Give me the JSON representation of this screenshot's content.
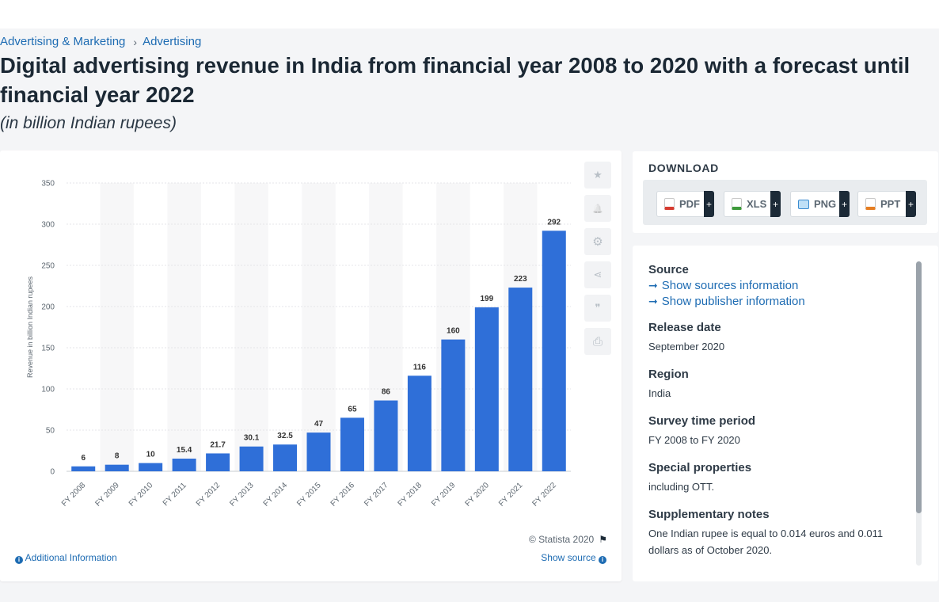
{
  "breadcrumb": {
    "items": [
      "Advertising & Marketing",
      "Advertising"
    ],
    "separator": "›"
  },
  "title": "Digital advertising revenue in India from financial year 2008 to 2020 with a forecast until financial year 2022",
  "subtitle": "(in billion Indian rupees)",
  "chart_data": {
    "type": "bar",
    "categories": [
      "FY 2008",
      "FY 2009",
      "FY 2010",
      "FY 2011",
      "FY 2012",
      "FY 2013",
      "FY 2014",
      "FY 2015",
      "FY 2016",
      "FY 2017",
      "FY 2018",
      "FY 2019",
      "FY 2020",
      "FY 2021",
      "FY 2022"
    ],
    "values": [
      6,
      8,
      10,
      15.4,
      21.7,
      30.1,
      32.5,
      47,
      65,
      86,
      116,
      160,
      199,
      223,
      292
    ],
    "data_labels": [
      "6",
      "8",
      "10",
      "15.4",
      "21.7",
      "30.1",
      "32.5",
      "47",
      "65",
      "86",
      "116",
      "160",
      "199",
      "223",
      "292"
    ],
    "ylabel": "Revenue in billion Indian rupees",
    "ylim": [
      0,
      350
    ],
    "yticks": [
      0,
      50,
      100,
      150,
      200,
      250,
      300,
      350
    ],
    "bar_color": "#2f6fd8",
    "grid": true,
    "legend": "none"
  },
  "chart_footer": {
    "copyright": "© Statista 2020",
    "additional_info": "Additional Information",
    "show_source": "Show source"
  },
  "tools": [
    {
      "icon": "star-icon",
      "glyph": "★"
    },
    {
      "icon": "bell-icon",
      "glyph": "🔔"
    },
    {
      "icon": "gear-icon",
      "glyph": "⚙"
    },
    {
      "icon": "share-icon",
      "glyph": "⋖"
    },
    {
      "icon": "quote-icon",
      "glyph": "❞"
    },
    {
      "icon": "print-icon",
      "glyph": "⎙"
    }
  ],
  "download": {
    "title": "DOWNLOAD",
    "buttons": [
      {
        "label": "PDF",
        "icon": "pdf-file-icon",
        "color": "#d63b30"
      },
      {
        "label": "XLS",
        "icon": "xls-file-icon",
        "color": "#3e9a3b"
      },
      {
        "label": "PNG",
        "icon": "png-file-icon",
        "color": "#3a8bd0"
      },
      {
        "label": "PPT",
        "icon": "ppt-file-icon",
        "color": "#e67e22"
      }
    ],
    "plus": "+"
  },
  "source_panel": {
    "source_heading": "Source",
    "show_sources": "Show sources information",
    "show_publisher": "Show publisher information",
    "release_date_heading": "Release date",
    "release_date": "September 2020",
    "region_heading": "Region",
    "region": "India",
    "survey_heading": "Survey time period",
    "survey": "FY 2008 to FY 2020",
    "special_heading": "Special properties",
    "special": "including OTT.",
    "notes_heading": "Supplementary notes",
    "notes": "One Indian rupee is equal to 0.014 euros and 0.011 dollars as of October 2020."
  }
}
